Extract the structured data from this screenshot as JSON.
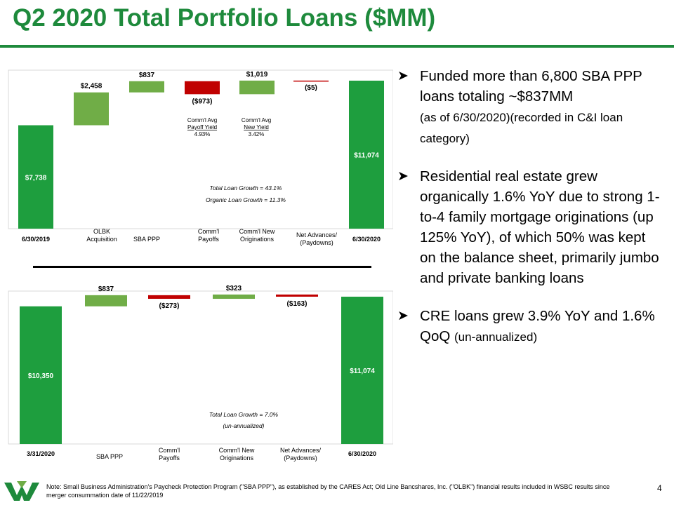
{
  "title": "Q2 2020 Total Portfolio Loans ($MM)",
  "colors": {
    "accent": "#1e8a3c",
    "bar_total": "#1e9e3e",
    "bar_increase": "#70ad47",
    "bar_decrease": "#c00000"
  },
  "chart_data": [
    {
      "type": "bar",
      "subtype": "waterfall",
      "categories": [
        "6/30/2019",
        "OLBK Acquisition",
        "SBA PPP",
        "Comm'l Payoffs",
        "Comm'l New Originations",
        "Net Advances/ (Paydowns)",
        "6/30/2020"
      ],
      "values": [
        7738,
        2458,
        837,
        -973,
        1019,
        -5,
        11074
      ],
      "kinds": [
        "total",
        "increase",
        "increase",
        "decrease",
        "increase",
        "decrease",
        "total"
      ],
      "value_labels": [
        "$7,738",
        "$2,458",
        "$837",
        "($973)",
        "$1,019",
        "($5)",
        "$11,074"
      ],
      "annotations": [
        {
          "id": "payoff_yield",
          "lines": [
            "Comm'l Avg",
            "Payoff Yield",
            "4.93%"
          ]
        },
        {
          "id": "new_yield",
          "lines": [
            "Comm'l Avg",
            "New Yield",
            "3.42%"
          ]
        },
        {
          "id": "growth",
          "lines": [
            "Total Loan Growth =  43.1%",
            "Organic Loan Growth =  11.3%"
          ]
        }
      ]
    },
    {
      "type": "bar",
      "subtype": "waterfall",
      "categories": [
        "3/31/2020",
        "SBA PPP",
        "Comm'l Payoffs",
        "Comm'l New Originations",
        "Net Advances/ (Paydowns)",
        "6/30/2020"
      ],
      "values": [
        10350,
        837,
        -273,
        323,
        -163,
        11074
      ],
      "kinds": [
        "total",
        "increase",
        "decrease",
        "increase",
        "decrease",
        "total"
      ],
      "value_labels": [
        "$10,350",
        "$837",
        "($273)",
        "$323",
        "($163)",
        "$11,074"
      ],
      "annotations": [
        {
          "id": "growth",
          "lines": [
            "Total Loan Growth =  7.0%",
            "(un-annualized)"
          ]
        }
      ]
    }
  ],
  "bullets": [
    {
      "main": "Funded more than 6,800 SBA PPP loans totaling ~$837MM",
      "sub": "(as of 6/30/2020)(recorded in C&I loan category)"
    },
    {
      "main": "Residential real estate grew organically 1.6% YoY due to strong 1-to-4 family mortgage originations (up 125% YoY), of which 50% was kept on the balance sheet, primarily jumbo and private banking loans",
      "sub": ""
    },
    {
      "main": "CRE loans grew 3.9% YoY and 1.6% QoQ",
      "sub": "(un-annualized)"
    }
  ],
  "bullet_icon": "arrow-bullet-icon",
  "footer": {
    "note": "Note:  Small Business Administration's Paycheck Protection Program (\"SBA PPP\"),  as established by the CARES  Act; Old Line Bancshares, Inc. (\"OLBK\") financial results included in WSBC results since merger consummation date of 11/22/2019",
    "page_number": "4",
    "logo_icon": "wesbanco-logo-icon"
  }
}
